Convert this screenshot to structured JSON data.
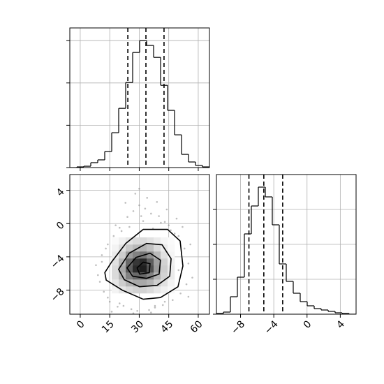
{
  "chart_data": [
    {
      "type": "histogram",
      "bins": [
        -5.3,
        -1.75,
        1.8,
        5.35,
        8.9,
        12.45,
        16.0,
        19.55,
        23.1,
        26.65,
        30.2,
        33.75,
        37.3,
        40.85,
        44.4,
        47.95,
        51.5,
        55.05,
        58.6,
        62.15,
        65.7
      ],
      "values": [
        0,
        8,
        16,
        58,
        91,
        190,
        412,
        700,
        1005,
        1360,
        1500,
        1443,
        1302,
        972,
        676,
        387,
        156,
        66,
        25,
        8
      ],
      "quantiles": [
        24.2,
        33.4,
        42.6
      ],
      "xlim": [
        -5.3,
        65.7
      ],
      "xticks": [
        0,
        15,
        30,
        45,
        60
      ],
      "ylim": [
        0,
        1650
      ],
      "yticks": [
        0,
        500,
        1000,
        1500
      ],
      "color": "#000000",
      "grid": true
    },
    {
      "type": "hist2d",
      "xlim": [
        -5.3,
        65.7
      ],
      "xticks": [
        0,
        15,
        30,
        45,
        60
      ],
      "ylim": [
        -10.9,
        5.9
      ],
      "yticks": [
        {
          "value": -8,
          "label": "−8"
        },
        {
          "value": -4,
          "label": "−4"
        },
        0,
        4
      ],
      "x": [
        8,
        11,
        14,
        10,
        17,
        20,
        24,
        27,
        30,
        33,
        36,
        40,
        43,
        46,
        50,
        53,
        55,
        57,
        12,
        15,
        19,
        22,
        26,
        29,
        35,
        38,
        42,
        47,
        51,
        54,
        9,
        13,
        18,
        23,
        28,
        31,
        34,
        39,
        44,
        49,
        52,
        56,
        16,
        21,
        25,
        32,
        37,
        41,
        45,
        48,
        11,
        14,
        20,
        27,
        36,
        43,
        50,
        55,
        30,
        38
      ],
      "y": [
        -5,
        -3.8,
        -2.5,
        -7,
        -1.5,
        -0.5,
        0.8,
        1.5,
        2.2,
        1.8,
        1.2,
        0.9,
        0.2,
        -0.8,
        -1.5,
        -3,
        -4.8,
        -6.5,
        -8.2,
        -9.4,
        -10,
        -9.9,
        -10.3,
        -10.5,
        -10.4,
        -10.1,
        -9.8,
        -9.2,
        -8.4,
        -7.3,
        -6.2,
        -3,
        -0.2,
        2.5,
        3.6,
        0.9,
        3.1,
        2.6,
        1.7,
        0.6,
        -0.4,
        -2.5,
        -10.6,
        -0.9,
        -0.4,
        0.3,
        -0.6,
        0.1,
        -0.2,
        -1.2,
        -4.6,
        -8.9,
        -9.6,
        -10.8,
        -10.7,
        -9.4,
        -5.6,
        -8.8,
        4.2,
        -9.9
      ],
      "point_color": "#808080",
      "hist2d": {
        "x_edges": [
          16.0,
          19.55,
          23.1,
          26.65,
          30.2,
          33.75,
          37.3,
          40.85,
          44.4,
          47.95
        ],
        "y_edges": [
          -8.38,
          -7.54,
          -6.7,
          -5.86,
          -5.02,
          -4.18,
          -3.34,
          -2.5,
          -1.66
        ],
        "counts": [
          [
            5,
            10,
            15,
            18,
            18,
            15,
            10,
            6,
            3
          ],
          [
            10,
            20,
            30,
            35,
            35,
            30,
            20,
            12,
            5
          ],
          [
            15,
            30,
            50,
            60,
            60,
            50,
            30,
            18,
            8
          ],
          [
            15,
            35,
            65,
            85,
            90,
            70,
            40,
            20,
            8
          ],
          [
            12,
            30,
            60,
            80,
            85,
            65,
            38,
            18,
            6
          ],
          [
            8,
            20,
            40,
            50,
            55,
            45,
            28,
            12,
            4
          ],
          [
            5,
            12,
            22,
            28,
            30,
            25,
            15,
            8,
            3
          ],
          [
            2,
            6,
            10,
            14,
            15,
            12,
            8,
            4,
            2
          ]
        ]
      },
      "contours": [
        {
          "x": [
            12.5,
            16.0,
            23.1,
            32.0,
            44.4,
            50.8,
            52.2,
            49.7,
            40.8,
            32.0,
            21.3,
            13.2
          ],
          "y": [
            -5.9,
            -4.6,
            -2.4,
            -0.7,
            -0.7,
            -2.1,
            -5.1,
            -7.6,
            -8.9,
            -9.1,
            -8.0,
            -6.8
          ]
        },
        {
          "x": [
            19.5,
            24.9,
            33.7,
            41.6,
            46.2,
            45.5,
            39.1,
            30.2,
            22.4
          ],
          "y": [
            -5.5,
            -3.56,
            -2.39,
            -2.55,
            -4.23,
            -6.33,
            -7.43,
            -7.6,
            -6.75
          ]
        },
        {
          "x": [
            23.8,
            28.4,
            35.5,
            40.8,
            40.1,
            33.7,
            26.6
          ],
          "y": [
            -5.33,
            -4.07,
            -3.56,
            -4.4,
            -6.08,
            -6.59,
            -6.33
          ]
        },
        {
          "x": [
            28.9,
            32.0,
            35.5,
            35.1,
            30.2
          ],
          "y": [
            -5.33,
            -4.65,
            -4.82,
            -5.91,
            -6.08
          ]
        }
      ],
      "color": "#000000",
      "grid": true
    },
    {
      "type": "histogram",
      "bins": [
        -10.9,
        -10.06,
        -9.22,
        -8.38,
        -7.54,
        -6.7,
        -5.86,
        -5.02,
        -4.18,
        -3.34,
        -2.5,
        -1.66,
        -0.82,
        0.02,
        0.86,
        1.7,
        2.54,
        3.38,
        4.22,
        5.06,
        5.9
      ],
      "values": [
        20,
        60,
        500,
        1060,
        2300,
        3100,
        3640,
        3360,
        2560,
        1440,
        940,
        600,
        360,
        240,
        160,
        120,
        80,
        40,
        20,
        0
      ],
      "quantiles": [
        -6.99,
        -5.2,
        -2.93
      ],
      "xlim": [
        -10.9,
        5.9
      ],
      "xticks": [
        {
          "value": -8,
          "label": "−8"
        },
        {
          "value": -4,
          "label": "−4"
        },
        0,
        4
      ],
      "ylim": [
        0,
        4000
      ],
      "yticks": [
        0,
        1000,
        2000,
        3000
      ],
      "color": "#000000",
      "grid": true
    }
  ]
}
